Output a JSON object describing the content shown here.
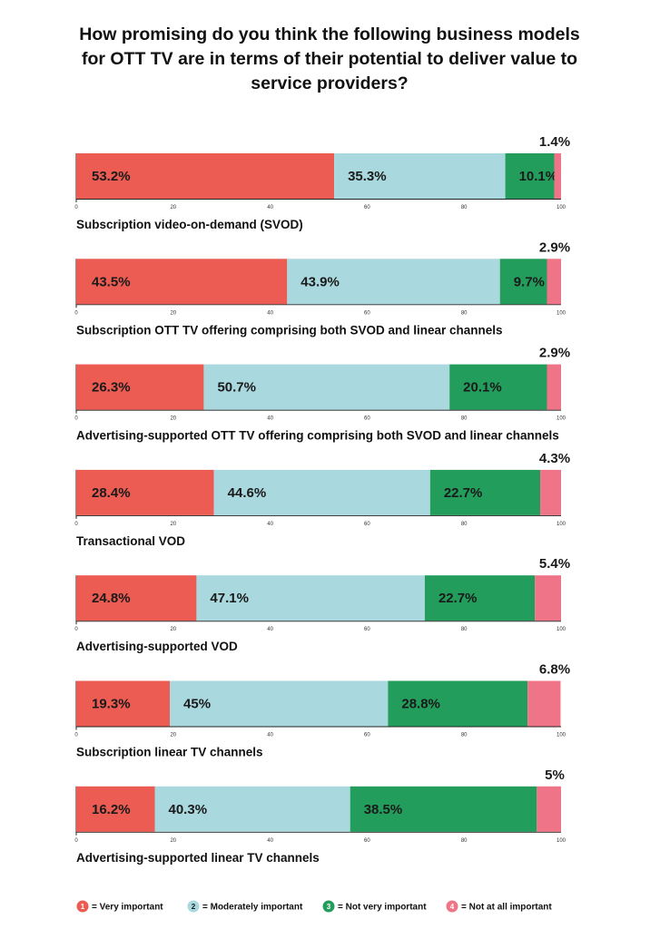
{
  "chart_data": {
    "type": "bar",
    "orientation": "horizontal",
    "stacked": true,
    "title": "How promising do you think the following business models for OTT TV are in terms of their potential to deliver value to service providers?",
    "title_lines": [
      "How promising do you think the following business models",
      "for OTT TV are in terms of their potential to deliver value to",
      "service providers?"
    ],
    "xlim": [
      0,
      100
    ],
    "x_ticks": [
      "0",
      "20",
      "40",
      "60",
      "80",
      "100"
    ],
    "categories": [
      "Subscription video-on-demand (SVOD)",
      "Subscription OTT TV offering comprising both SVOD and linear channels",
      "Advertising-supported OTT TV offering comprising both SVOD and linear channels",
      "Transactional VOD",
      "Advertising-supported VOD",
      "Subscription linear TV channels",
      "Advertising-supported linear TV channels"
    ],
    "series": [
      {
        "name": "Very important",
        "color": "#ec5c52",
        "values": [
          53.2,
          43.5,
          26.3,
          28.4,
          24.8,
          19.3,
          16.2
        ],
        "labels": [
          "53.2%",
          "43.5%",
          "26.3%",
          "28.4%",
          "24.8%",
          "19.3%",
          "16.2%"
        ]
      },
      {
        "name": "Moderately important",
        "color": "#a9d8de",
        "values": [
          35.3,
          43.9,
          50.7,
          44.6,
          47.1,
          45,
          40.3
        ],
        "labels": [
          "35.3%",
          "43.9%",
          "50.7%",
          "44.6%",
          "47.1%",
          "45%",
          "40.3%"
        ]
      },
      {
        "name": "Not very important",
        "color": "#239d5c",
        "values": [
          10.1,
          9.7,
          20.1,
          22.7,
          22.7,
          28.8,
          38.5
        ],
        "labels": [
          "10.1%",
          "9.7%",
          "20.1%",
          "22.7%",
          "22.7%",
          "28.8%",
          "38.5%"
        ]
      },
      {
        "name": "Not at all important",
        "color": "#f07487",
        "values": [
          1.4,
          2.9,
          2.9,
          4.3,
          5.4,
          6.8,
          5
        ],
        "labels": [
          "1.4%",
          "2.9%",
          "2.9%",
          "4.3%",
          "5.4%",
          "6.8%",
          "5%"
        ]
      }
    ],
    "legend": {
      "position": "bottom",
      "items": [
        {
          "num": "1",
          "text": "= Very important",
          "color": "#ec5c52"
        },
        {
          "num": "2",
          "text": "= Moderately important",
          "color": "#a9d8de"
        },
        {
          "num": "3",
          "text": "= Not very important",
          "color": "#239d5c"
        },
        {
          "num": "4",
          "text": "= Not at all important",
          "color": "#f07487"
        }
      ]
    }
  }
}
